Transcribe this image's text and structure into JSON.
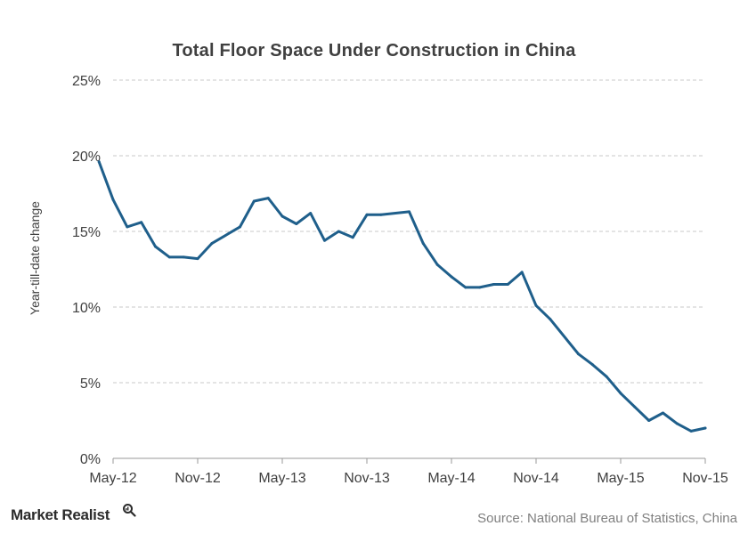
{
  "chart_data": {
    "type": "line",
    "title": "Total Floor Space Under Construction in China",
    "xlabel": "",
    "ylabel": "Year-till-date change",
    "ylim": [
      0,
      25
    ],
    "yticks": [
      "0%",
      "5%",
      "10%",
      "15%",
      "20%",
      "25%"
    ],
    "xticks": [
      "May-12",
      "Nov-12",
      "May-13",
      "Nov-13",
      "May-14",
      "Nov-14",
      "May-15",
      "Nov-15"
    ],
    "grid": true,
    "line_color": "#1f5f8b",
    "series": [
      {
        "x": [
          "Apr-12",
          "May-12",
          "Jun-12",
          "Jul-12",
          "Aug-12",
          "Sep-12",
          "Oct-12",
          "Nov-12",
          "Dec-12",
          "Feb-13",
          "Mar-13",
          "Apr-13",
          "May-13",
          "Jun-13",
          "Jul-13",
          "Aug-13",
          "Sep-13",
          "Oct-13",
          "Nov-13",
          "Dec-13",
          "Feb-14",
          "Mar-14",
          "Apr-14",
          "May-14",
          "Jun-14",
          "Jul-14",
          "Aug-14",
          "Sep-14",
          "Oct-14",
          "Nov-14",
          "Dec-14",
          "Feb-15",
          "Mar-15",
          "Apr-15",
          "May-15",
          "Jun-15",
          "Jul-15",
          "Aug-15",
          "Sep-15",
          "Oct-15",
          "Nov-15"
        ],
        "values": [
          19.6,
          17.1,
          15.3,
          15.6,
          14.0,
          13.3,
          13.3,
          13.2,
          14.2,
          15.3,
          17.0,
          17.2,
          16.0,
          15.5,
          16.2,
          14.4,
          15.0,
          14.6,
          16.1,
          16.1,
          16.3,
          14.2,
          12.8,
          12.0,
          11.3,
          11.3,
          11.5,
          11.5,
          12.3,
          10.1,
          9.2,
          6.9,
          6.2,
          5.4,
          4.3,
          3.4,
          2.5,
          3.0,
          2.3,
          1.8,
          2.0
        ]
      }
    ]
  },
  "footer": {
    "brand": "Market Realist",
    "source": "Source: National Bureau of Statistics, China"
  }
}
